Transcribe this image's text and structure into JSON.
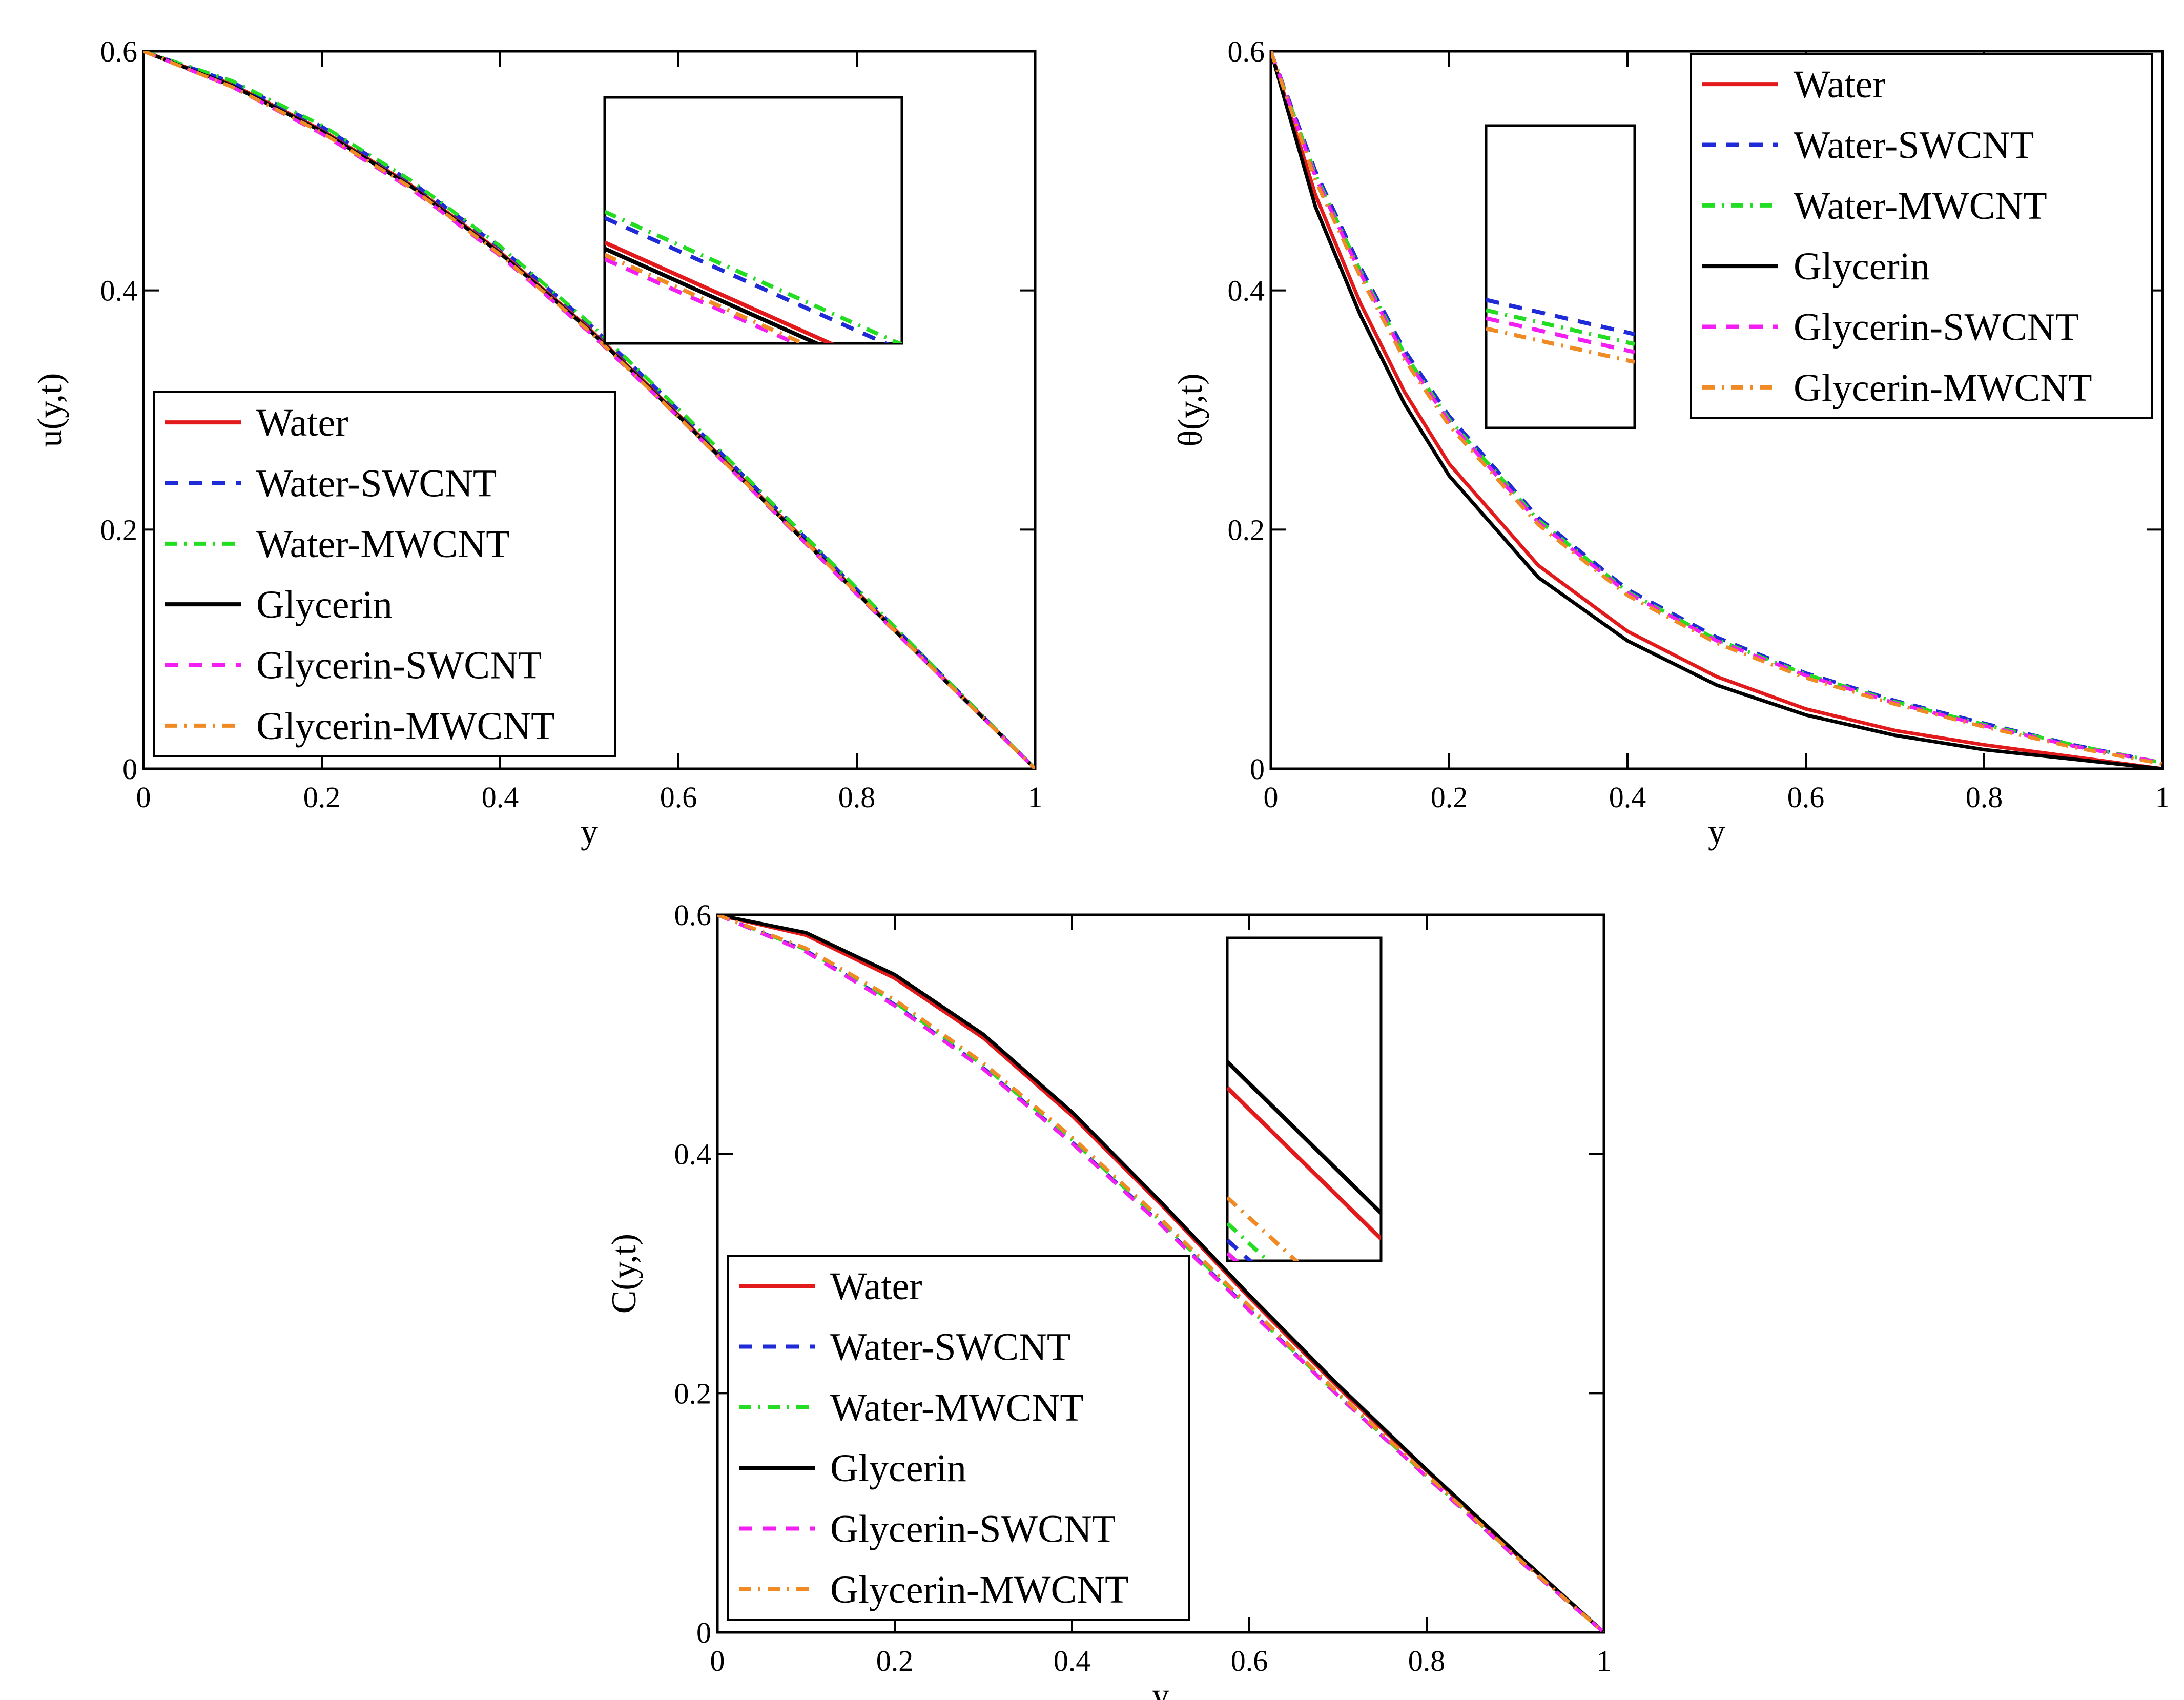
{
  "colors": {
    "water": "#e31a1c",
    "water_swcnt": "#1f2bd6",
    "water_mwcnt": "#22dd22",
    "glycerin": "#000000",
    "glycerin_swcnt": "#f21ef2",
    "glycerin_mwcnt": "#f08a24"
  },
  "chart_data": [
    {
      "id": "velocity",
      "type": "line",
      "ylabel": "u(y,t)",
      "xlabel": "y",
      "xlim": [
        0,
        1
      ],
      "ylim": [
        0,
        0.6
      ],
      "xticks": [
        "0",
        "0.2",
        "0.4",
        "0.6",
        "0.8",
        "1"
      ],
      "yticks": [
        "0",
        "0.2",
        "0.4",
        "0.6"
      ],
      "legend_position": "lower-left",
      "inset_position": "top-center",
      "series": [
        {
          "name": "Water",
          "style": "solid",
          "color_key": "water",
          "x": [
            0,
            0.1,
            0.2,
            0.3,
            0.4,
            0.5,
            0.6,
            0.7,
            0.8,
            0.9,
            1.0
          ],
          "y": [
            0.6,
            0.572,
            0.534,
            0.488,
            0.432,
            0.368,
            0.296,
            0.222,
            0.148,
            0.074,
            0.0
          ]
        },
        {
          "name": "Water-SWCNT",
          "style": "dash",
          "color_key": "water_swcnt",
          "x": [
            0,
            0.1,
            0.2,
            0.3,
            0.4,
            0.5,
            0.6,
            0.7,
            0.8,
            0.9,
            1.0
          ],
          "y": [
            0.6,
            0.574,
            0.537,
            0.491,
            0.436,
            0.372,
            0.3,
            0.225,
            0.15,
            0.075,
            0.0
          ]
        },
        {
          "name": "Water-MWCNT",
          "style": "dashdot",
          "color_key": "water_mwcnt",
          "x": [
            0,
            0.1,
            0.2,
            0.3,
            0.4,
            0.5,
            0.6,
            0.7,
            0.8,
            0.9,
            1.0
          ],
          "y": [
            0.6,
            0.575,
            0.538,
            0.492,
            0.437,
            0.373,
            0.301,
            0.226,
            0.151,
            0.075,
            0.0
          ]
        },
        {
          "name": "Glycerin",
          "style": "solid",
          "color_key": "glycerin",
          "x": [
            0,
            0.1,
            0.2,
            0.3,
            0.4,
            0.5,
            0.6,
            0.7,
            0.8,
            0.9,
            1.0
          ],
          "y": [
            0.6,
            0.571,
            0.533,
            0.487,
            0.431,
            0.367,
            0.295,
            0.221,
            0.147,
            0.073,
            0.0
          ]
        },
        {
          "name": "Glycerin-SWCNT",
          "style": "dash",
          "color_key": "glycerin_swcnt",
          "x": [
            0,
            0.1,
            0.2,
            0.3,
            0.4,
            0.5,
            0.6,
            0.7,
            0.8,
            0.9,
            1.0
          ],
          "y": [
            0.6,
            0.57,
            0.531,
            0.485,
            0.429,
            0.365,
            0.294,
            0.22,
            0.146,
            0.073,
            0.0
          ]
        },
        {
          "name": "Glycerin-MWCNT",
          "style": "dashdot",
          "color_key": "glycerin_mwcnt",
          "x": [
            0,
            0.1,
            0.2,
            0.3,
            0.4,
            0.5,
            0.6,
            0.7,
            0.8,
            0.9,
            1.0
          ],
          "y": [
            0.6,
            0.57,
            0.532,
            0.486,
            0.43,
            0.366,
            0.294,
            0.221,
            0.147,
            0.073,
            0.0
          ]
        }
      ]
    },
    {
      "id": "temperature",
      "type": "line",
      "ylabel": "θ(y,t)",
      "xlabel": "y",
      "xlim": [
        0,
        1
      ],
      "ylim": [
        0,
        0.6
      ],
      "xticks": [
        "0",
        "0.2",
        "0.4",
        "0.6",
        "0.8",
        "1"
      ],
      "yticks": [
        "0",
        "0.2",
        "0.4",
        "0.6"
      ],
      "legend_position": "top-right",
      "inset_position": "top-center",
      "series": [
        {
          "name": "Water",
          "style": "solid",
          "color_key": "water",
          "x": [
            0,
            0.05,
            0.1,
            0.15,
            0.2,
            0.3,
            0.4,
            0.5,
            0.6,
            0.7,
            0.8,
            0.9,
            1.0
          ],
          "y": [
            0.6,
            0.48,
            0.39,
            0.315,
            0.255,
            0.17,
            0.115,
            0.077,
            0.05,
            0.032,
            0.02,
            0.01,
            0.0
          ]
        },
        {
          "name": "Water-SWCNT",
          "style": "dash",
          "color_key": "water_swcnt",
          "x": [
            0,
            0.05,
            0.1,
            0.15,
            0.2,
            0.3,
            0.4,
            0.5,
            0.6,
            0.7,
            0.8,
            0.9,
            1.0
          ],
          "y": [
            0.6,
            0.5,
            0.42,
            0.35,
            0.295,
            0.21,
            0.15,
            0.11,
            0.08,
            0.057,
            0.038,
            0.02,
            0.005
          ]
        },
        {
          "name": "Water-MWCNT",
          "style": "dashdot",
          "color_key": "water_mwcnt",
          "x": [
            0,
            0.05,
            0.1,
            0.15,
            0.2,
            0.3,
            0.4,
            0.5,
            0.6,
            0.7,
            0.8,
            0.9,
            1.0
          ],
          "y": [
            0.6,
            0.497,
            0.417,
            0.347,
            0.292,
            0.208,
            0.148,
            0.108,
            0.079,
            0.056,
            0.037,
            0.02,
            0.005
          ]
        },
        {
          "name": "Glycerin",
          "style": "solid",
          "color_key": "glycerin",
          "x": [
            0,
            0.05,
            0.1,
            0.15,
            0.2,
            0.3,
            0.4,
            0.5,
            0.6,
            0.7,
            0.8,
            0.9,
            1.0
          ],
          "y": [
            0.6,
            0.47,
            0.38,
            0.305,
            0.245,
            0.16,
            0.107,
            0.07,
            0.045,
            0.028,
            0.016,
            0.008,
            0.0
          ]
        },
        {
          "name": "Glycerin-SWCNT",
          "style": "dash",
          "color_key": "glycerin_swcnt",
          "x": [
            0,
            0.05,
            0.1,
            0.15,
            0.2,
            0.3,
            0.4,
            0.5,
            0.6,
            0.7,
            0.8,
            0.9,
            1.0
          ],
          "y": [
            0.6,
            0.495,
            0.415,
            0.345,
            0.29,
            0.206,
            0.147,
            0.107,
            0.078,
            0.055,
            0.036,
            0.019,
            0.005
          ]
        },
        {
          "name": "Glycerin-MWCNT",
          "style": "dashdot",
          "color_key": "glycerin_mwcnt",
          "x": [
            0,
            0.05,
            0.1,
            0.15,
            0.2,
            0.3,
            0.4,
            0.5,
            0.6,
            0.7,
            0.8,
            0.9,
            1.0
          ],
          "y": [
            0.6,
            0.492,
            0.412,
            0.342,
            0.287,
            0.204,
            0.145,
            0.105,
            0.076,
            0.054,
            0.035,
            0.018,
            0.004
          ]
        }
      ]
    },
    {
      "id": "concentration",
      "type": "line",
      "ylabel": "C(y,t)",
      "xlabel": "y",
      "xlim": [
        0,
        1
      ],
      "ylim": [
        0,
        0.6
      ],
      "xticks": [
        "0",
        "0.2",
        "0.4",
        "0.6",
        "0.8",
        "1"
      ],
      "yticks": [
        "0",
        "0.2",
        "0.4",
        "0.6"
      ],
      "legend_position": "lower-left",
      "inset_position": "top-right",
      "series": [
        {
          "name": "Water",
          "style": "solid",
          "color_key": "water",
          "x": [
            0,
            0.1,
            0.2,
            0.3,
            0.4,
            0.5,
            0.6,
            0.7,
            0.8,
            0.9,
            1.0
          ],
          "y": [
            0.6,
            0.583,
            0.547,
            0.497,
            0.432,
            0.358,
            0.28,
            0.205,
            0.135,
            0.066,
            0.0
          ]
        },
        {
          "name": "Water-SWCNT",
          "style": "dash",
          "color_key": "water_swcnt",
          "x": [
            0,
            0.1,
            0.2,
            0.3,
            0.4,
            0.5,
            0.6,
            0.7,
            0.8,
            0.9,
            1.0
          ],
          "y": [
            0.6,
            0.57,
            0.525,
            0.472,
            0.41,
            0.342,
            0.27,
            0.198,
            0.13,
            0.063,
            0.0
          ]
        },
        {
          "name": "Water-MWCNT",
          "style": "dashdot",
          "color_key": "water_mwcnt",
          "x": [
            0,
            0.1,
            0.2,
            0.3,
            0.4,
            0.5,
            0.6,
            0.7,
            0.8,
            0.9,
            1.0
          ],
          "y": [
            0.6,
            0.571,
            0.527,
            0.474,
            0.412,
            0.344,
            0.271,
            0.199,
            0.131,
            0.064,
            0.0
          ]
        },
        {
          "name": "Glycerin",
          "style": "solid",
          "color_key": "glycerin",
          "x": [
            0,
            0.1,
            0.2,
            0.3,
            0.4,
            0.5,
            0.6,
            0.7,
            0.8,
            0.9,
            1.0
          ],
          "y": [
            0.6,
            0.585,
            0.55,
            0.5,
            0.435,
            0.36,
            0.282,
            0.207,
            0.136,
            0.067,
            0.0
          ]
        },
        {
          "name": "Glycerin-SWCNT",
          "style": "dash",
          "color_key": "glycerin_swcnt",
          "x": [
            0,
            0.1,
            0.2,
            0.3,
            0.4,
            0.5,
            0.6,
            0.7,
            0.8,
            0.9,
            1.0
          ],
          "y": [
            0.6,
            0.569,
            0.524,
            0.471,
            0.409,
            0.341,
            0.269,
            0.198,
            0.13,
            0.063,
            0.0
          ]
        },
        {
          "name": "Glycerin-MWCNT",
          "style": "dashdot",
          "color_key": "glycerin_mwcnt",
          "x": [
            0,
            0.1,
            0.2,
            0.3,
            0.4,
            0.5,
            0.6,
            0.7,
            0.8,
            0.9,
            1.0
          ],
          "y": [
            0.6,
            0.572,
            0.529,
            0.476,
            0.414,
            0.346,
            0.273,
            0.2,
            0.132,
            0.064,
            0.0
          ]
        }
      ]
    }
  ]
}
